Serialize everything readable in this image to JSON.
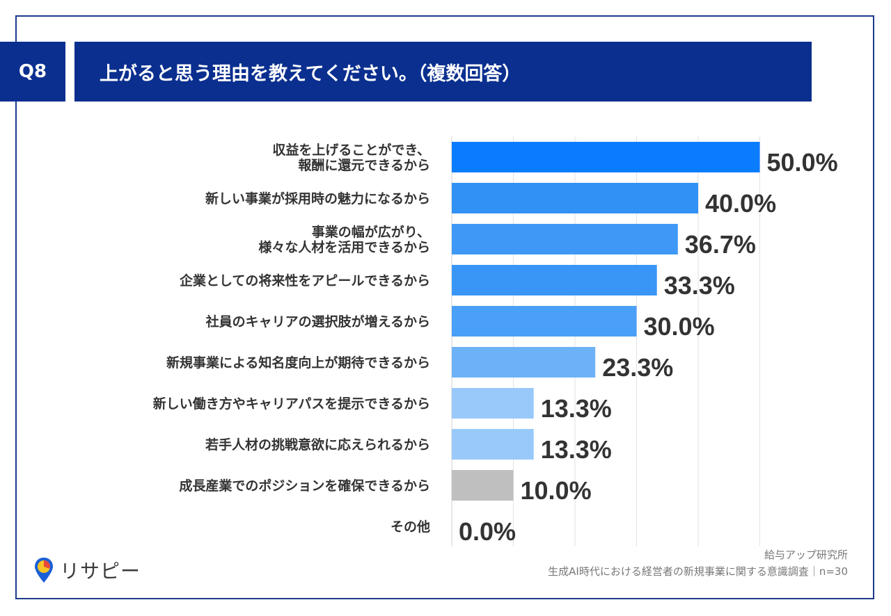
{
  "header": {
    "badge": "Q8",
    "title": "上がると思う理由を教えてください。（複数回答）"
  },
  "chart_data": {
    "type": "bar",
    "orientation": "horizontal",
    "categories": [
      [
        "収益を上げることができ、",
        "報酬に還元できるから"
      ],
      [
        "新しい事業が採用時の魅力になるから"
      ],
      [
        "事業の幅が広がり、",
        "様々な人材を活用できるから"
      ],
      [
        "企業としての将来性をアピールできるから"
      ],
      [
        "社員のキャリアの選択肢が増えるから"
      ],
      [
        "新規事業による知名度向上が期待できるから"
      ],
      [
        "新しい働き方やキャリアパスを提示できるから"
      ],
      [
        "若手人材の挑戦意欲に応えられるから"
      ],
      [
        "成長産業でのポジションを確保できるから"
      ],
      [
        "その他"
      ]
    ],
    "values": [
      50.0,
      40.0,
      36.7,
      33.3,
      30.0,
      23.3,
      13.3,
      13.3,
      10.0,
      0.0
    ],
    "value_labels": [
      "50.0%",
      "40.0%",
      "36.7%",
      "33.3%",
      "30.0%",
      "23.3%",
      "13.3%",
      "13.3%",
      "10.0%",
      "0.0%"
    ],
    "colors": [
      "#0a7cff",
      "#3291f5",
      "#3f98f5",
      "#3a96f6",
      "#4a9ff6",
      "#6db2f8",
      "#99c9fb",
      "#99c9fb",
      "#bfbfbf",
      "#bfbfbf"
    ],
    "xlim": [
      0,
      50
    ],
    "grid": true,
    "unit": "%"
  },
  "footer": {
    "source_line1": "給与アップ研究所",
    "source_line2": "生成AI時代における経営者の新規事業に関する意識調査｜n=30",
    "logo_text": "リサピー"
  }
}
